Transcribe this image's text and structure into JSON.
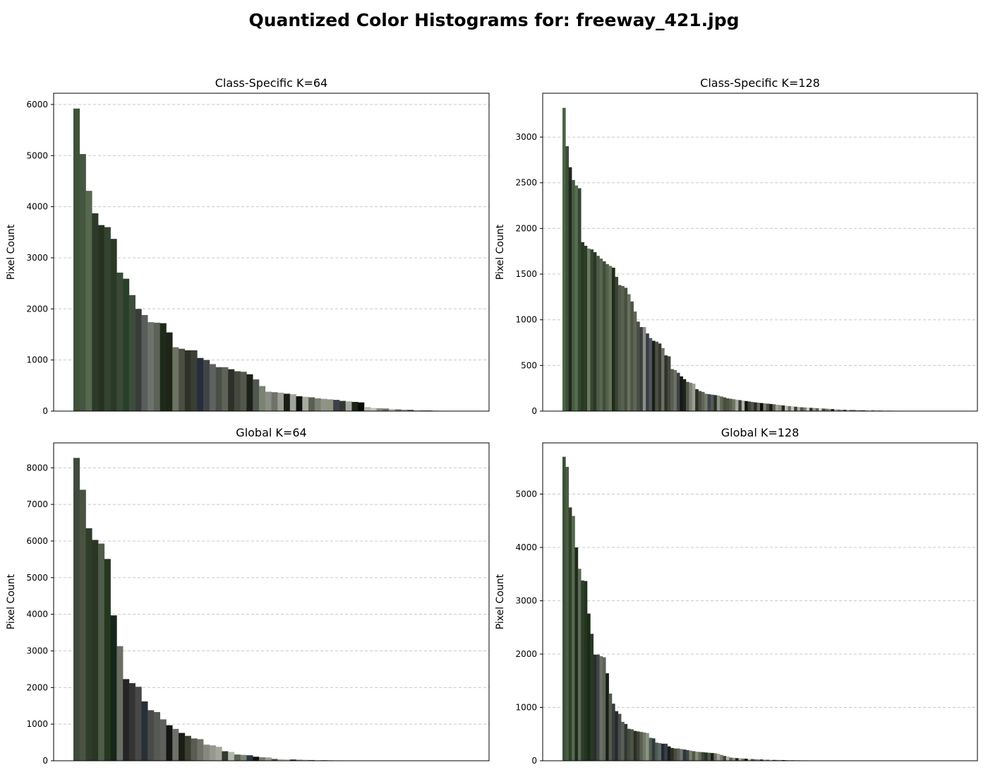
{
  "figure_title": "Quantized Color Histograms for: freeway_421.jpg",
  "chart_data": [
    {
      "type": "bar",
      "title": "Class-Specific K=64",
      "ylabel": "Pixel Count",
      "xlabel": "",
      "ylim": [
        0,
        6220
      ],
      "yticks": [
        0,
        1000,
        2000,
        3000,
        4000,
        5000,
        6000
      ],
      "grid": "y-dashed",
      "values": [
        5920,
        5030,
        4310,
        3870,
        3640,
        3600,
        3370,
        2710,
        2590,
        2270,
        2000,
        1880,
        1740,
        1730,
        1720,
        1540,
        1250,
        1220,
        1190,
        1190,
        1040,
        1000,
        920,
        860,
        860,
        820,
        780,
        770,
        720,
        620,
        490,
        380,
        370,
        360,
        340,
        330,
        290,
        280,
        270,
        250,
        240,
        230,
        220,
        200,
        190,
        180,
        170,
        80,
        60,
        55,
        50,
        40,
        35,
        30,
        25,
        20,
        15,
        12,
        10,
        8,
        6,
        5,
        4,
        3
      ],
      "colors": [
        "#3e5238",
        "#44563f",
        "#56694f",
        "#2d3a29",
        "#26321f",
        "#324430",
        "#2a3a26",
        "#3a4a37",
        "#28402a",
        "#3c4e3a",
        "#3a3c3c",
        "#5a5e5a",
        "#6e726c",
        "#5c6256",
        "#1e2a1a",
        "#1f2418",
        "#6c7462",
        "#4c4e44",
        "#2e3226",
        "#3a3e34",
        "#262e3c",
        "#404446",
        "#5e6260",
        "#4a4e48",
        "#606258",
        "#2c302a",
        "#44483e",
        "#54584c",
        "#1c2018",
        "#505650",
        "#7a8270",
        "#8a8e86",
        "#6e7268",
        "#9a9e94",
        "#1a1c16",
        "#a0a49a",
        "#0e1210",
        "#a8aca0",
        "#5a6050",
        "#7c8074",
        "#909488",
        "#8e9280",
        "#3c4048",
        "#343830",
        "#a4a89e",
        "#1c2414",
        "#080a06",
        "#b4b8ae",
        "#c0c4ba",
        "#888c80",
        "#6a6e64",
        "#b8bcb2",
        "#70746a",
        "#9ca094",
        "#4a5044",
        "#c4c8be",
        "#808478",
        "#2a2e24",
        "#a0a498",
        "#d0d4c8",
        "#747868",
        "#c8ccc0",
        "#50544a",
        "#dcdcd4"
      ]
    },
    {
      "type": "bar",
      "title": "Class-Specific K=128",
      "ylabel": "Pixel Count",
      "xlabel": "",
      "ylim": [
        0,
        3480
      ],
      "yticks": [
        0,
        500,
        1000,
        1500,
        2000,
        2500,
        3000
      ],
      "grid": "y-dashed",
      "values": [
        3320,
        2900,
        2670,
        2530,
        2470,
        2440,
        1850,
        1810,
        1780,
        1770,
        1740,
        1700,
        1670,
        1640,
        1610,
        1590,
        1570,
        1470,
        1380,
        1370,
        1350,
        1280,
        1200,
        1090,
        980,
        920,
        920,
        850,
        800,
        770,
        760,
        740,
        690,
        610,
        600,
        460,
        450,
        420,
        380,
        350,
        320,
        310,
        300,
        240,
        220,
        210,
        190,
        185,
        180,
        175,
        170,
        160,
        150,
        140,
        135,
        130,
        125,
        120,
        115,
        110,
        105,
        100,
        95,
        92,
        88,
        85,
        82,
        78,
        75,
        70,
        66,
        62,
        58,
        55,
        52,
        48,
        45,
        42,
        40,
        38,
        36,
        34,
        32,
        30,
        28,
        26,
        24,
        22,
        20,
        18,
        16,
        15,
        14,
        13,
        12,
        11,
        10,
        9,
        8,
        8,
        7,
        7,
        6,
        6,
        5,
        5,
        5,
        4,
        4,
        4,
        3,
        3,
        3,
        3,
        2,
        2,
        2,
        2,
        2,
        1,
        1,
        1,
        1,
        1,
        1,
        1,
        1,
        1
      ],
      "colors": [
        "#4e6446",
        "#3c4e38",
        "#20281c",
        "#485c42",
        "#586c52",
        "#344630",
        "#263a22",
        "#2a3e26",
        "#707868",
        "#324a2c",
        "#2c3628",
        "#4a5a44",
        "#5c6452",
        "#3e4e3a",
        "#546048",
        "#66705a",
        "#1c2c18",
        "#3a4234",
        "#4e5848",
        "#5a6050",
        "#46503e",
        "#68705e",
        "#4e5446",
        "#5e6656",
        "#4a4e46",
        "#3a3e3c",
        "#8a8e86",
        "#383c44",
        "#50545c",
        "#1a2018",
        "#4c5044",
        "#343a2e",
        "#6c7066",
        "#2e3226",
        "#44483e",
        "#585c54",
        "#6e7266",
        "#404440",
        "#14181a",
        "#1e2218",
        "#545848",
        "#7e8276",
        "#9a9e94",
        "#2c3024",
        "#4a5040",
        "#606458",
        "#747868",
        "#3c4450",
        "#565a50",
        "#28302c",
        "#8e9284",
        "#606656",
        "#46503c",
        "#4c5244",
        "#5a6048",
        "#707466",
        "#a6aa9e",
        "#363a30",
        "#b0b4a8",
        "#121410",
        "#3e4238",
        "#52564a",
        "#2a2c22",
        "#666a5c",
        "#0a0c08",
        "#7c8070",
        "#4a4e40",
        "#1c1e16",
        "#5e6252",
        "#9ea294",
        "#888c7e",
        "#262a20",
        "#b8bcb0",
        "#6a6e60",
        "#c2c6ba",
        "#3a3e32",
        "#a8ac9e",
        "#50544a",
        "#787c6e",
        "#c8ccc0",
        "#30342a",
        "#96998c",
        "#5c6054",
        "#d0d4c8",
        "#444a3c",
        "#6c7064",
        "#888c80",
        "#1a1c14",
        "#b4b8ac",
        "#7a7e72",
        "#9c9e92",
        "#3a3c34",
        "#cacec2",
        "#646858",
        "#585c4e",
        "#a2a698",
        "#707468",
        "#42463a",
        "#8c9084",
        "#d6d8ce",
        "#2e3028",
        "#bcc0b4",
        "#5a5e50",
        "#727668",
        "#ccd0c4",
        "#4c5044",
        "#9a9e90",
        "#36382e",
        "#e0e2d8",
        "#686c5e",
        "#b0b2a6",
        "#7e8274",
        "#202218",
        "#c4c8bc",
        "#545848",
        "#a8ac9e",
        "#60645a",
        "#8e9284",
        "#383a30",
        "#d8dcd0",
        "#747868",
        "#44483c",
        "#bcbfb2",
        "#9a9c90",
        "#686c60",
        "#cfd2c6",
        "#525648",
        "#e4e6dc"
      ]
    },
    {
      "type": "bar",
      "title": "Global K=64",
      "ylabel": "Pixel Count",
      "xlabel": "",
      "ylim": [
        0,
        8680
      ],
      "yticks": [
        0,
        1000,
        2000,
        3000,
        4000,
        5000,
        6000,
        7000,
        8000
      ],
      "grid": "y-dashed",
      "values": [
        8270,
        7400,
        6350,
        6030,
        5930,
        5510,
        3970,
        3130,
        2230,
        2120,
        2020,
        1620,
        1380,
        1330,
        1130,
        970,
        870,
        760,
        680,
        610,
        590,
        440,
        420,
        380,
        260,
        240,
        170,
        160,
        150,
        110,
        95,
        90,
        50,
        45,
        40,
        35,
        30,
        25,
        20,
        18,
        15,
        12,
        10,
        8,
        6,
        5,
        4,
        3,
        3,
        2,
        2,
        2,
        1,
        1,
        1,
        1,
        1,
        1,
        1,
        1,
        1,
        1,
        1,
        1
      ],
      "colors": [
        "#404a3c",
        "#4a5342",
        "#2e3d2a",
        "#283622",
        "#4f5c4a",
        "#26371f",
        "#17261a",
        "#6a6f66",
        "#242424",
        "#343434",
        "#484848",
        "#283037",
        "#484a48",
        "#555855",
        "#5e605c",
        "#141414",
        "#6e706a",
        "#1a1c16",
        "#3c3e32",
        "#5a5c52",
        "#707268",
        "#86887e",
        "#96988e",
        "#a4a69a",
        "#323a2e",
        "#b4b6ac",
        "#5a6052",
        "#7e8276",
        "#2a3844",
        "#0e1210",
        "#787c70",
        "#9a9e92",
        "#4a4e44",
        "#b8bcb0",
        "#c4c8bc",
        "#30342a",
        "#8c9084",
        "#a8ac9e",
        "#60645a",
        "#d2d4ca",
        "#44483c",
        "#747868",
        "#bcc0b4",
        "#54584a",
        "#d8dcd0",
        "#383c30",
        "#8a8e80",
        "#a0a496",
        "#c8ccc0",
        "#686c5e",
        "#e0e2d8",
        "#4e5246",
        "#9a9c90",
        "#24261e",
        "#b0b4a8",
        "#7a7e70",
        "#cccfc4",
        "#5c6052",
        "#e8eae0",
        "#3e4236",
        "#a2a698",
        "#868a7c",
        "#d4d6cc",
        "#70746a"
      ]
    },
    {
      "type": "bar",
      "title": "Global K=128",
      "ylabel": "Pixel Count",
      "xlabel": "",
      "ylim": [
        0,
        5960
      ],
      "yticks": [
        0,
        1000,
        2000,
        3000,
        4000,
        5000
      ],
      "grid": "y-dashed",
      "values": [
        5700,
        5510,
        4750,
        4590,
        4000,
        3600,
        3380,
        3370,
        2760,
        2380,
        1990,
        1990,
        1960,
        1940,
        1640,
        1260,
        1070,
        930,
        880,
        730,
        690,
        600,
        590,
        560,
        550,
        540,
        530,
        520,
        430,
        420,
        340,
        330,
        320,
        320,
        270,
        240,
        230,
        230,
        220,
        210,
        200,
        190,
        180,
        170,
        165,
        160,
        155,
        150,
        145,
        140,
        130,
        110,
        90,
        80,
        60,
        55,
        50,
        45,
        42,
        38,
        35,
        32,
        30,
        28,
        25,
        22,
        20,
        18,
        16,
        15,
        14,
        13,
        12,
        11,
        10,
        9,
        8,
        8,
        7,
        7,
        6,
        6,
        5,
        5,
        5,
        4,
        4,
        4,
        3,
        3,
        3,
        3,
        2,
        2,
        2,
        2,
        2,
        2,
        1,
        1,
        1,
        1,
        1,
        1,
        1,
        1,
        1,
        1,
        1,
        1,
        1,
        1,
        1,
        1,
        1,
        1,
        1,
        1,
        1,
        1,
        1,
        1,
        1,
        1,
        1,
        1,
        1,
        1
      ],
      "colors": [
        "#3e5038",
        "#4a5e44",
        "#304028",
        "#566a4e",
        "#1e2a1a",
        "#5c6a58",
        "#2c3c28",
        "#24341f",
        "#1a2a16",
        "#263a24",
        "#2a2c2c",
        "#404444",
        "#6a7064",
        "#5e645a",
        "#142014",
        "#545a50",
        "#3a3c3a",
        "#262a2e",
        "#4c4e4c",
        "#5a5e58",
        "#323832",
        "#444a3e",
        "#505446",
        "#2a2e26",
        "#3e4236",
        "#5c6050",
        "#6e7a6a",
        "#8a9482",
        "#565c4c",
        "#2e3a3a",
        "#4e5a56",
        "#606a64",
        "#202a34",
        "#3a404a",
        "#1c1e18",
        "#2c3024",
        "#484c3e",
        "#5a5e52",
        "#707468",
        "#283444",
        "#404638",
        "#7a7e72",
        "#545846",
        "#868a7e",
        "#646854",
        "#38443e",
        "#2a3228",
        "#4c5848",
        "#1a2018",
        "#6c7062",
        "#9ea294",
        "#767a6c",
        "#3c4234",
        "#b0b4a6",
        "#5e6254",
        "#8c9082",
        "#22261c",
        "#a4a89a",
        "#68705e",
        "#0c0e0a",
        "#c0c4b8",
        "#4a4e40",
        "#7e8274",
        "#9a9e8e",
        "#30342a",
        "#b8bcb0",
        "#606456",
        "#d0d2c8",
        "#42463a",
        "#888c7e",
        "#a8ac9e",
        "#161812",
        "#74786a",
        "#c6c8be",
        "#52564a",
        "#969a8c",
        "#2a2c24",
        "#bcc0b4",
        "#666a5e",
        "#dadcd2",
        "#3c3e34",
        "#7c8072",
        "#aeb2a4",
        "#585c50",
        "#cccec4",
        "#8e9284",
        "#30322a",
        "#a2a698",
        "#e4e6dc",
        "#6a6e60",
        "#484a40",
        "#b6baae",
        "#7a7c70",
        "#d4d8cc",
        "#5e6256",
        "#9c9e92",
        "#36382e",
        "#c2c4ba",
        "#868a7c",
        "#ecece4",
        "#4e5246",
        "#aaae9e",
        "#707466",
        "#dcdfd4",
        "#626658",
        "#929688",
        "#3a3c32",
        "#c8ccc0",
        "#7e8276",
        "#b2b4a8",
        "#545848",
        "#e6e8de",
        "#6c7062",
        "#a0a294",
        "#464a3e",
        "#d0d2c6",
        "#8a8e80",
        "#babdb0",
        "#5a5e50",
        "#f0f0e8",
        "#747868",
        "#a8ab9e",
        "#404236",
        "#cdd0c4",
        "#949888",
        "#e2e4da",
        "#686c5c",
        "#c0c2b6"
      ]
    }
  ]
}
